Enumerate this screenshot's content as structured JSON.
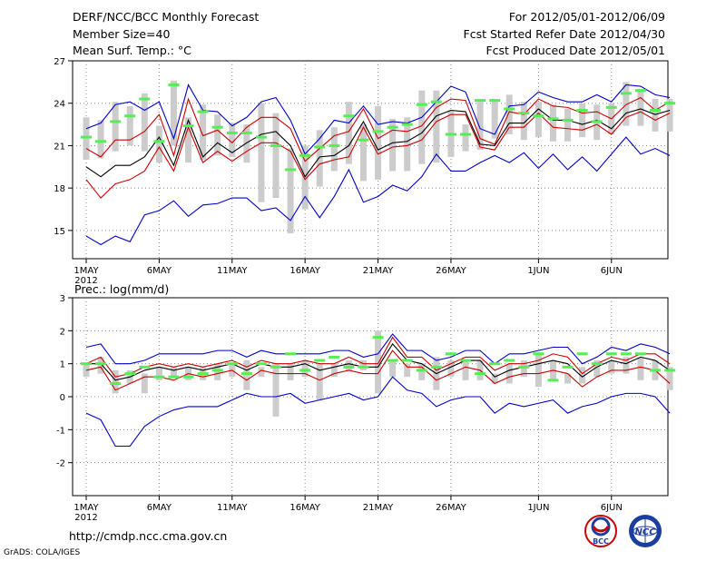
{
  "header": {
    "title": "DERF/NCC/BCC Monthly Forecast",
    "member_size": "Member Size=40",
    "variable": "Mean Surf. Temp.: °C",
    "period": "For 2012/05/01-2012/06/09",
    "started": "Fcst Started Refer Date 2012/04/30",
    "produced": "Fcst Produced Date 2012/05/01"
  },
  "footer": {
    "url": "http://cmdp.ncc.cma.gov.cn",
    "credit": "GrADS: COLA/IGES",
    "logo1": "BCC",
    "logo2": "NCC"
  },
  "colors": {
    "envelope": "#0000cc",
    "spread": "#cc0000",
    "mean": "#000000",
    "obs": "#55ee55",
    "box": "#cccccc",
    "grid": "#888888"
  },
  "chart_data": [
    {
      "type": "line",
      "name": "temperature",
      "ylabel": "",
      "ylim": [
        13,
        27
      ],
      "yticks": [
        15,
        18,
        21,
        24,
        27
      ],
      "x_ticks": [
        {
          "day": 1,
          "label": "1MAY"
        },
        {
          "day": 6,
          "label": "6MAY"
        },
        {
          "day": 11,
          "label": "11MAY"
        },
        {
          "day": 16,
          "label": "16MAY"
        },
        {
          "day": 21,
          "label": "21MAY"
        },
        {
          "day": 26,
          "label": "26MAY"
        },
        {
          "day": 32,
          "label": "1JUN"
        },
        {
          "day": 37,
          "label": "6JUN"
        }
      ],
      "year_label": "2012",
      "days": 40,
      "series": [
        {
          "name": "max",
          "values": [
            22.2,
            22.6,
            23.9,
            24.1,
            23.5,
            24.1,
            21.5,
            25.3,
            23.5,
            23.4,
            22.4,
            23.0,
            24.1,
            24.4,
            22.8,
            20.4,
            21.5,
            22.8,
            22.6,
            23.8,
            22.5,
            22.7,
            22.6,
            23.0,
            24.1,
            25.2,
            24.8,
            22.2,
            21.8,
            23.8,
            23.9,
            24.8,
            24.4,
            24.1,
            24.1,
            24.6,
            24.1,
            25.3,
            25.2,
            24.6,
            24.4
          ]
        },
        {
          "name": "upper",
          "values": [
            20.8,
            20.2,
            21.4,
            21.4,
            22.0,
            23.2,
            20.3,
            24.3,
            21.7,
            22.1,
            21.2,
            22.3,
            23.0,
            23.0,
            22.2,
            19.9,
            20.8,
            21.7,
            22.0,
            23.6,
            21.5,
            22.1,
            22.0,
            22.4,
            23.7,
            24.3,
            24.2,
            21.5,
            21.1,
            23.4,
            23.2,
            24.3,
            23.8,
            23.7,
            23.3,
            23.4,
            22.9,
            23.9,
            24.4,
            23.5,
            24.1
          ]
        },
        {
          "name": "mean",
          "values": [
            19.5,
            18.8,
            19.6,
            19.6,
            20.2,
            21.6,
            19.6,
            22.8,
            20.2,
            21.2,
            20.5,
            21.2,
            21.8,
            22.0,
            21.0,
            18.8,
            20.2,
            20.3,
            21.0,
            22.7,
            20.7,
            21.2,
            21.3,
            21.9,
            23.1,
            23.5,
            23.4,
            21.1,
            21.0,
            22.6,
            22.6,
            23.6,
            22.8,
            22.8,
            22.5,
            22.8,
            22.2,
            23.3,
            23.6,
            23.2,
            23.5
          ]
        },
        {
          "name": "lower",
          "values": [
            18.6,
            17.3,
            18.3,
            18.6,
            19.2,
            20.9,
            19.2,
            22.3,
            19.8,
            20.6,
            19.9,
            20.6,
            21.2,
            21.2,
            20.6,
            18.6,
            19.7,
            20.0,
            20.2,
            22.3,
            20.4,
            20.9,
            21.0,
            21.4,
            22.7,
            23.2,
            23.2,
            20.9,
            20.7,
            22.3,
            22.3,
            23.3,
            22.3,
            22.2,
            22.1,
            22.5,
            21.8,
            23.0,
            23.4,
            22.8,
            23.3
          ]
        },
        {
          "name": "min",
          "values": [
            14.6,
            14.0,
            14.6,
            14.2,
            16.1,
            16.4,
            17.1,
            16.0,
            16.8,
            16.9,
            17.3,
            17.3,
            16.4,
            16.6,
            15.7,
            17.4,
            15.9,
            17.4,
            19.3,
            17.0,
            17.4,
            18.2,
            17.8,
            18.8,
            20.4,
            19.2,
            19.2,
            19.8,
            20.3,
            19.8,
            20.5,
            19.4,
            20.4,
            19.3,
            20.2,
            19.2,
            20.4,
            21.6,
            20.4,
            20.8,
            20.3
          ]
        },
        {
          "name": "observed",
          "values": [
            21.6,
            21.3,
            22.7,
            23.1,
            24.3,
            21.3,
            25.3,
            22.4,
            23.4,
            22.3,
            21.9,
            21.9,
            21.6,
            21.0,
            19.3,
            20.3,
            20.9,
            21.0,
            23.1,
            21.4,
            22.0,
            22.3,
            22.5,
            23.9,
            24.1,
            21.8,
            21.8,
            24.2,
            24.2,
            23.6,
            23.3,
            23.1,
            22.9,
            22.8,
            23.5,
            22.7,
            23.7,
            24.7,
            24.9,
            23.5,
            24.0
          ]
        }
      ],
      "box_ranges": [
        [
          20.0,
          23.0
        ],
        [
          20.1,
          22.8
        ],
        [
          20.6,
          24.1
        ],
        [
          21.0,
          23.8
        ],
        [
          20.6,
          24.7
        ],
        [
          19.8,
          22.4
        ],
        [
          21.0,
          25.6
        ],
        [
          19.8,
          23.0
        ],
        [
          20.0,
          23.9
        ],
        [
          20.3,
          23.2
        ],
        [
          20.2,
          22.6
        ],
        [
          19.8,
          22.5
        ],
        [
          17.0,
          24.0
        ],
        [
          17.3,
          23.3
        ],
        [
          14.8,
          20.8
        ],
        [
          16.5,
          21.0
        ],
        [
          18.1,
          22.1
        ],
        [
          19.2,
          22.3
        ],
        [
          19.7,
          24.1
        ],
        [
          18.5,
          22.5
        ],
        [
          18.6,
          23.8
        ],
        [
          19.2,
          22.9
        ],
        [
          19.2,
          23.0
        ],
        [
          19.7,
          24.9
        ],
        [
          19.8,
          24.9
        ],
        [
          20.2,
          23.5
        ],
        [
          20.6,
          22.5
        ],
        [
          20.7,
          24.1
        ],
        [
          21.5,
          24.3
        ],
        [
          21.8,
          24.6
        ],
        [
          21.4,
          24.1
        ],
        [
          21.6,
          24.1
        ],
        [
          21.3,
          23.9
        ],
        [
          21.3,
          23.6
        ],
        [
          21.6,
          24.0
        ],
        [
          21.4,
          23.9
        ],
        [
          21.8,
          24.0
        ],
        [
          22.4,
          25.5
        ],
        [
          22.4,
          25.0
        ],
        [
          22.0,
          24.3
        ],
        [
          22.0,
          24.3
        ]
      ]
    },
    {
      "type": "line",
      "name": "precipitation",
      "ylabel": "Prec.: log(mm/d)",
      "ylim": [
        -3,
        3
      ],
      "yticks": [
        -2,
        -1,
        0,
        1,
        2,
        3
      ],
      "x_ticks": [
        {
          "day": 1,
          "label": "1MAY"
        },
        {
          "day": 6,
          "label": "6MAY"
        },
        {
          "day": 11,
          "label": "11MAY"
        },
        {
          "day": 16,
          "label": "16MAY"
        },
        {
          "day": 21,
          "label": "21MAY"
        },
        {
          "day": 26,
          "label": "26MAY"
        },
        {
          "day": 32,
          "label": "1JUN"
        },
        {
          "day": 37,
          "label": "6JUN"
        }
      ],
      "year_label": "2012",
      "days": 40,
      "series": [
        {
          "name": "max",
          "values": [
            1.5,
            1.6,
            1.0,
            1.0,
            1.1,
            1.3,
            1.3,
            1.3,
            1.3,
            1.4,
            1.4,
            1.2,
            1.4,
            1.3,
            1.3,
            1.3,
            1.3,
            1.4,
            1.4,
            1.2,
            1.3,
            1.9,
            1.4,
            1.4,
            1.1,
            1.2,
            1.4,
            1.4,
            1.0,
            1.3,
            1.3,
            1.4,
            1.5,
            1.5,
            1.0,
            1.2,
            1.5,
            1.4,
            1.6,
            1.5,
            1.3
          ]
        },
        {
          "name": "upper",
          "values": [
            1.0,
            1.2,
            0.6,
            0.7,
            0.9,
            1.0,
            0.9,
            1.0,
            0.9,
            1.0,
            1.1,
            0.9,
            1.1,
            1.0,
            1.0,
            1.1,
            1.0,
            1.0,
            1.2,
            1.0,
            1.0,
            1.8,
            1.2,
            1.2,
            0.8,
            1.0,
            1.2,
            1.2,
            0.8,
            1.0,
            1.0,
            1.1,
            1.3,
            1.2,
            0.7,
            1.0,
            1.2,
            1.1,
            1.3,
            1.3,
            1.0
          ]
        },
        {
          "name": "mean",
          "values": [
            1.0,
            1.0,
            0.5,
            0.6,
            0.8,
            0.9,
            0.8,
            0.9,
            0.8,
            0.9,
            1.0,
            0.8,
            1.0,
            0.9,
            0.9,
            1.0,
            0.8,
            0.9,
            1.0,
            0.9,
            0.9,
            1.6,
            1.1,
            1.0,
            0.7,
            0.9,
            1.1,
            1.1,
            0.6,
            0.8,
            0.9,
            1.0,
            1.1,
            1.0,
            0.6,
            0.9,
            1.1,
            1.0,
            1.2,
            1.1,
            0.8
          ]
        },
        {
          "name": "lower",
          "values": [
            0.8,
            0.9,
            0.2,
            0.4,
            0.6,
            0.6,
            0.5,
            0.7,
            0.6,
            0.7,
            0.8,
            0.5,
            0.8,
            0.7,
            0.7,
            0.7,
            0.5,
            0.7,
            0.8,
            0.7,
            0.7,
            1.4,
            0.9,
            0.9,
            0.5,
            0.7,
            0.9,
            0.8,
            0.4,
            0.6,
            0.7,
            0.7,
            0.8,
            0.7,
            0.3,
            0.6,
            0.8,
            0.8,
            0.9,
            0.8,
            0.4
          ]
        },
        {
          "name": "min",
          "values": [
            -0.5,
            -0.7,
            -1.5,
            -1.5,
            -0.9,
            -0.6,
            -0.4,
            -0.3,
            -0.3,
            -0.3,
            -0.1,
            0.1,
            0.0,
            0.0,
            0.1,
            -0.2,
            -0.1,
            0.0,
            0.1,
            -0.1,
            0.0,
            0.6,
            0.2,
            0.1,
            -0.3,
            -0.1,
            0.0,
            0.0,
            -0.5,
            -0.2,
            -0.3,
            -0.2,
            -0.1,
            -0.5,
            -0.3,
            -0.2,
            0.0,
            0.1,
            0.1,
            0.0,
            -0.5
          ]
        },
        {
          "name": "observed",
          "values": [
            1.0,
            1.0,
            0.4,
            0.7,
            0.9,
            0.6,
            0.6,
            0.6,
            0.7,
            0.8,
            1.0,
            0.7,
            1.0,
            0.9,
            1.3,
            0.8,
            1.1,
            1.2,
            0.9,
            0.9,
            1.8,
            1.1,
            1.1,
            0.8,
            0.9,
            1.3,
            1.1,
            0.7,
            1.0,
            1.1,
            0.9,
            1.3,
            0.5,
            0.9,
            1.3,
            1.0,
            1.3,
            1.3,
            1.3,
            0.8,
            0.8
          ]
        }
      ],
      "box_ranges": [
        [
          0.6,
          1.0
        ],
        [
          0.7,
          1.2
        ],
        [
          0.1,
          0.8
        ],
        [
          0.4,
          0.8
        ],
        [
          0.1,
          0.7
        ],
        [
          0.5,
          0.9
        ],
        [
          0.6,
          0.9
        ],
        [
          0.5,
          0.9
        ],
        [
          0.5,
          0.9
        ],
        [
          0.5,
          1.0
        ],
        [
          0.6,
          1.0
        ],
        [
          0.2,
          1.1
        ],
        [
          0.6,
          0.9
        ],
        [
          -0.6,
          1.0
        ],
        [
          0.5,
          1.0
        ],
        [
          0.6,
          1.1
        ],
        [
          -0.1,
          1.0
        ],
        [
          0.6,
          1.0
        ],
        [
          0.8,
          1.1
        ],
        [
          0.8,
          1.1
        ],
        [
          0.1,
          2.0
        ],
        [
          0.6,
          1.1
        ],
        [
          0.6,
          1.0
        ],
        [
          0.5,
          1.0
        ],
        [
          0.2,
          1.2
        ],
        [
          0.6,
          1.1
        ],
        [
          0.5,
          1.1
        ],
        [
          0.5,
          1.1
        ],
        [
          0.4,
          0.7
        ],
        [
          0.4,
          1.0
        ],
        [
          0.6,
          1.1
        ],
        [
          0.3,
          1.3
        ],
        [
          0.5,
          1.1
        ],
        [
          0.4,
          0.7
        ],
        [
          0.4,
          0.9
        ],
        [
          0.6,
          1.1
        ],
        [
          0.7,
          1.1
        ],
        [
          0.7,
          1.2
        ],
        [
          0.5,
          1.2
        ],
        [
          0.5,
          1.1
        ],
        [
          0.2,
          0.9
        ]
      ]
    }
  ]
}
